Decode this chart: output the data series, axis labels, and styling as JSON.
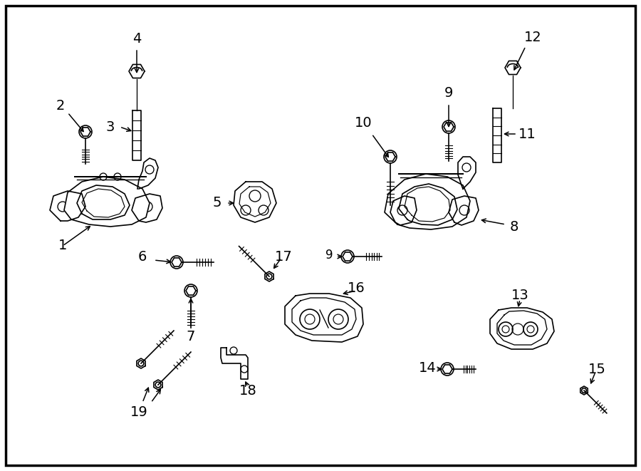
{
  "background_color": "#ffffff",
  "line_color": "#000000",
  "text_color": "#000000",
  "lw": 1.2,
  "font_size": 14,
  "fig_w": 9.0,
  "fig_h": 6.61,
  "dpi": 100
}
